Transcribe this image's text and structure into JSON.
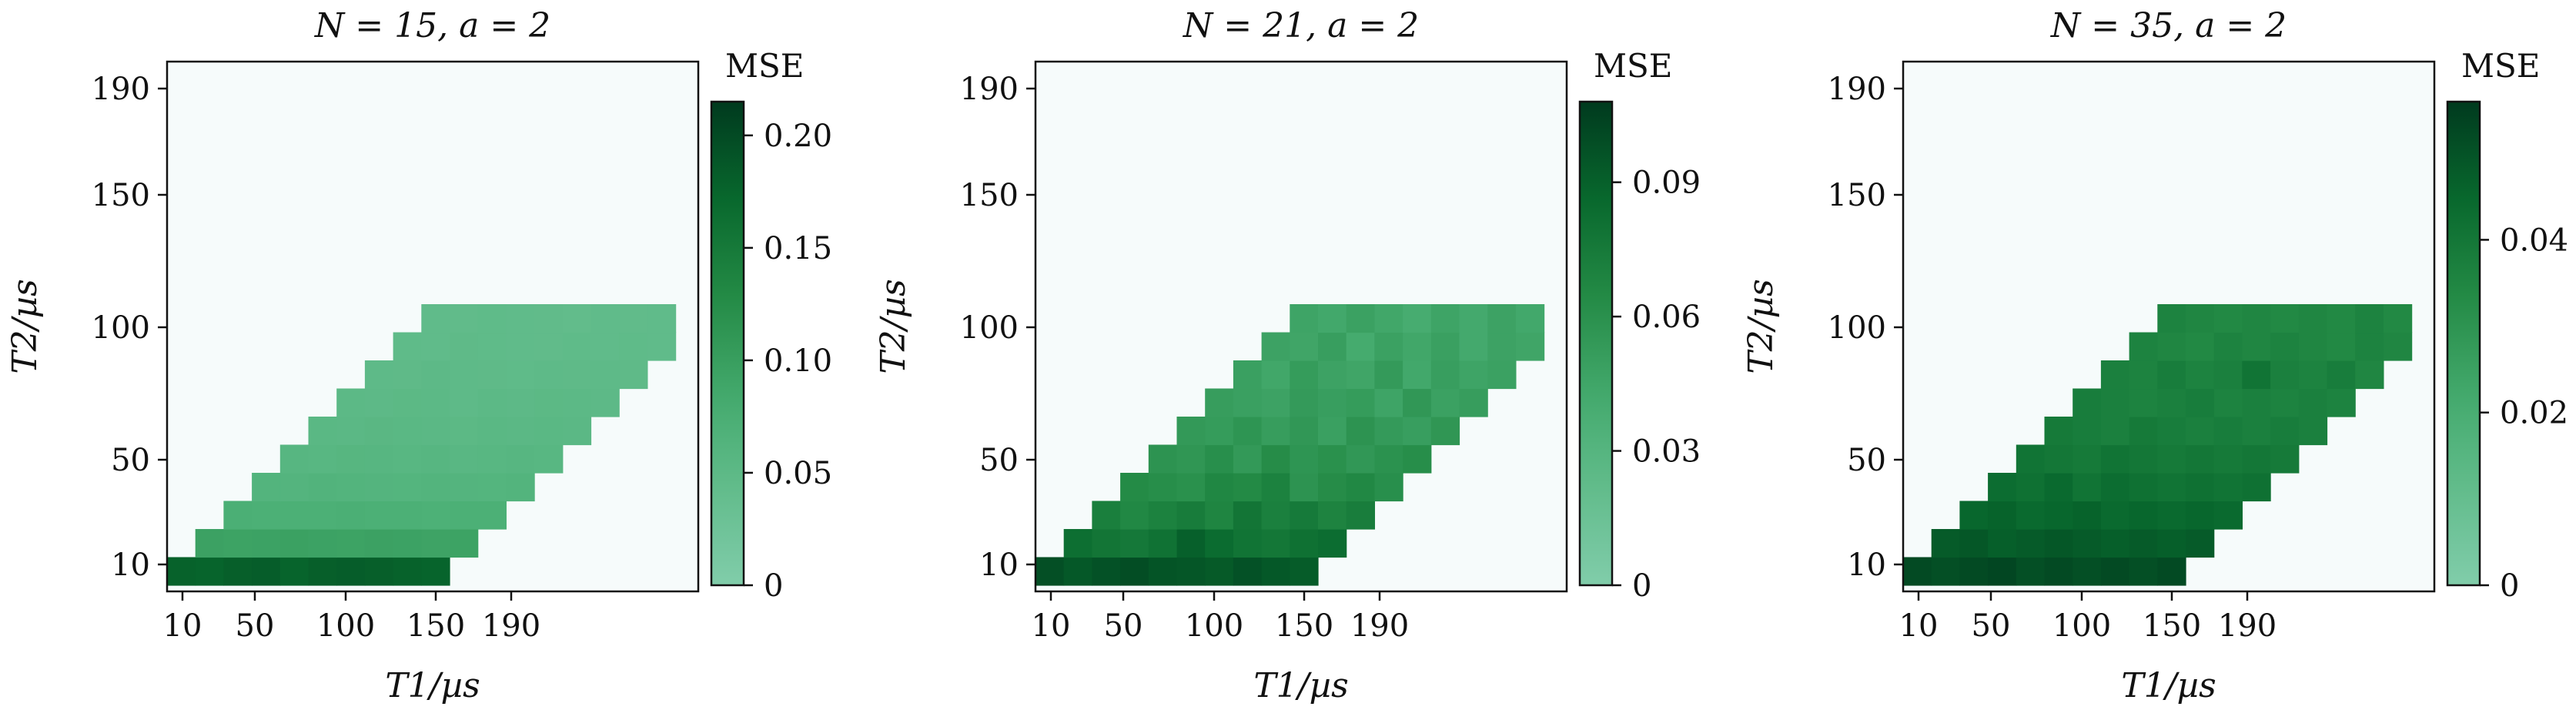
{
  "chart_data": [
    {
      "type": "heatmap",
      "title": "N = 15, a = 2",
      "xlabel": "T1/µs",
      "ylabel": "T2/µs",
      "x_ticks": [
        "10",
        "50",
        "100",
        "150",
        "190"
      ],
      "y_ticks": [
        "10",
        "50",
        "100",
        "150",
        "190"
      ],
      "colorbar_label": "MSE",
      "colorbar_ticks": [
        "0",
        "0.05",
        "0.10",
        "0.15",
        "0.20"
      ],
      "vmax": 0.215,
      "values": [
        [
          0.178,
          0.176,
          0.18,
          0.182,
          0.176,
          0.18,
          0.182,
          0.18,
          0.178,
          0.176
        ],
        [
          0.095,
          0.093,
          0.094,
          0.096,
          0.094,
          0.093,
          0.095,
          0.094,
          0.092,
          0.093
        ],
        [
          0.074,
          0.072,
          0.073,
          0.072,
          0.074,
          0.073,
          0.072,
          0.071,
          0.073,
          0.072
        ],
        [
          0.063,
          0.062,
          0.064,
          0.063,
          0.062,
          0.061,
          0.063,
          0.062,
          0.061,
          0.063
        ],
        [
          0.057,
          0.056,
          0.058,
          0.057,
          0.056,
          0.057,
          0.055,
          0.056,
          0.057,
          0.056
        ],
        [
          0.053,
          0.052,
          0.054,
          0.053,
          0.052,
          0.051,
          0.053,
          0.052,
          0.053,
          0.052
        ],
        [
          0.05,
          0.049,
          0.051,
          0.05,
          0.048,
          0.05,
          0.049,
          0.051,
          0.05,
          0.049
        ],
        [
          0.048,
          0.047,
          0.049,
          0.048,
          0.047,
          0.046,
          0.048,
          0.047,
          0.048,
          0.047
        ],
        [
          0.046,
          0.045,
          0.047,
          0.046,
          0.045,
          0.044,
          0.046,
          0.045,
          0.046,
          0.045
        ],
        [
          0.045,
          0.044,
          0.046,
          0.045,
          0.044,
          0.043,
          0.045,
          0.044,
          0.045,
          0.044
        ]
      ]
    },
    {
      "type": "heatmap",
      "title": "N = 21, a = 2",
      "xlabel": "T1/µs",
      "ylabel": "T2/µs",
      "x_ticks": [
        "10",
        "50",
        "100",
        "150",
        "190"
      ],
      "y_ticks": [
        "10",
        "50",
        "100",
        "150",
        "190"
      ],
      "colorbar_label": "MSE",
      "colorbar_ticks": [
        "0",
        "0.03",
        "0.06",
        "0.09"
      ],
      "vmax": 0.108,
      "values": [
        [
          0.098,
          0.094,
          0.097,
          0.099,
          0.096,
          0.095,
          0.093,
          0.097,
          0.094,
          0.092
        ],
        [
          0.082,
          0.078,
          0.076,
          0.08,
          0.09,
          0.084,
          0.079,
          0.077,
          0.081,
          0.083
        ],
        [
          0.072,
          0.066,
          0.07,
          0.074,
          0.068,
          0.078,
          0.071,
          0.075,
          0.069,
          0.073
        ],
        [
          0.064,
          0.062,
          0.06,
          0.067,
          0.065,
          0.07,
          0.058,
          0.063,
          0.066,
          0.061
        ],
        [
          0.058,
          0.056,
          0.061,
          0.054,
          0.063,
          0.057,
          0.06,
          0.055,
          0.059,
          0.062
        ],
        [
          0.054,
          0.052,
          0.057,
          0.051,
          0.055,
          0.049,
          0.058,
          0.053,
          0.05,
          0.056
        ],
        [
          0.051,
          0.049,
          0.047,
          0.053,
          0.05,
          0.052,
          0.046,
          0.055,
          0.048,
          0.051
        ],
        [
          0.049,
          0.044,
          0.052,
          0.047,
          0.045,
          0.053,
          0.043,
          0.05,
          0.046,
          0.048
        ],
        [
          0.047,
          0.045,
          0.05,
          0.041,
          0.048,
          0.044,
          0.049,
          0.042,
          0.047,
          0.045
        ],
        [
          0.046,
          0.043,
          0.048,
          0.044,
          0.04,
          0.046,
          0.042,
          0.047,
          0.043,
          0.045
        ]
      ]
    },
    {
      "type": "heatmap",
      "title": "N = 35, a = 2",
      "xlabel": "T1/µs",
      "ylabel": "T2/µs",
      "x_ticks": [
        "10",
        "50",
        "100",
        "150",
        "190"
      ],
      "y_ticks": [
        "10",
        "50",
        "100",
        "150",
        "190"
      ],
      "colorbar_label": "MSE",
      "colorbar_ticks": [
        "0",
        "0.02",
        "0.04"
      ],
      "vmax": 0.056,
      "values": [
        [
          0.052,
          0.051,
          0.052,
          0.053,
          0.051,
          0.052,
          0.051,
          0.052,
          0.051,
          0.052
        ],
        [
          0.048,
          0.049,
          0.047,
          0.048,
          0.049,
          0.048,
          0.047,
          0.048,
          0.047,
          0.048
        ],
        [
          0.045,
          0.046,
          0.044,
          0.045,
          0.046,
          0.044,
          0.045,
          0.044,
          0.045,
          0.044
        ],
        [
          0.043,
          0.042,
          0.044,
          0.041,
          0.043,
          0.042,
          0.041,
          0.042,
          0.041,
          0.042
        ],
        [
          0.041,
          0.04,
          0.039,
          0.041,
          0.04,
          0.039,
          0.04,
          0.039,
          0.04,
          0.039
        ],
        [
          0.039,
          0.038,
          0.037,
          0.039,
          0.038,
          0.037,
          0.038,
          0.037,
          0.038,
          0.037
        ],
        [
          0.038,
          0.037,
          0.036,
          0.037,
          0.038,
          0.036,
          0.037,
          0.036,
          0.037,
          0.036
        ],
        [
          0.037,
          0.036,
          0.038,
          0.036,
          0.037,
          0.041,
          0.037,
          0.036,
          0.038,
          0.035
        ],
        [
          0.036,
          0.035,
          0.034,
          0.036,
          0.035,
          0.036,
          0.035,
          0.034,
          0.036,
          0.035
        ],
        [
          0.036,
          0.035,
          0.034,
          0.035,
          0.034,
          0.035,
          0.034,
          0.036,
          0.034,
          0.035
        ]
      ]
    }
  ]
}
